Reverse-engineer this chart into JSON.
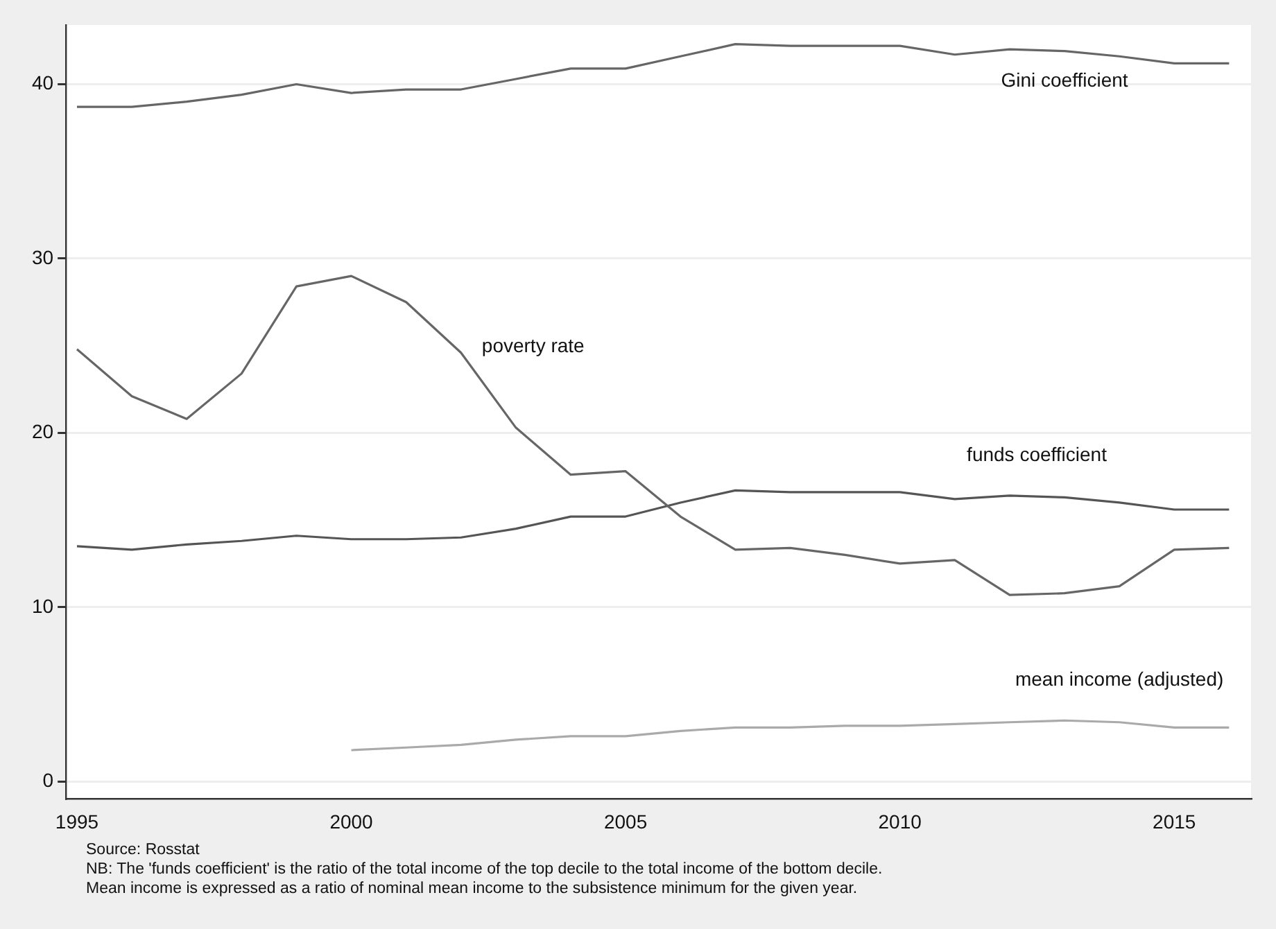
{
  "chart_data": {
    "type": "line",
    "x": [
      1995,
      1996,
      1997,
      1998,
      1999,
      2000,
      2001,
      2002,
      2003,
      2004,
      2005,
      2006,
      2007,
      2008,
      2009,
      2010,
      2011,
      2012,
      2013,
      2014,
      2015,
      2016
    ],
    "xlim": [
      1994.8,
      2016.4
    ],
    "xticks": [
      1995,
      2000,
      2005,
      2010,
      2015
    ],
    "ylim": [
      -1,
      43.4
    ],
    "yticks": [
      0,
      10,
      20,
      30,
      40
    ],
    "grid": "y",
    "legend": false,
    "marker": "none",
    "line_style": "solid",
    "series": [
      {
        "name": "Gini coefficient",
        "color": "#666666",
        "values": [
          38.7,
          38.7,
          39.0,
          39.4,
          40.0,
          39.5,
          39.7,
          39.7,
          40.3,
          40.9,
          40.9,
          41.6,
          42.3,
          42.2,
          42.2,
          42.2,
          41.7,
          42.0,
          41.9,
          41.6,
          41.2,
          41.2
        ]
      },
      {
        "name": "poverty rate",
        "color": "#666666",
        "values": [
          24.8,
          22.1,
          20.8,
          23.4,
          28.4,
          29.0,
          27.5,
          24.6,
          20.3,
          17.6,
          17.8,
          15.2,
          13.3,
          13.4,
          13.0,
          12.5,
          12.7,
          10.7,
          10.8,
          11.2,
          13.3,
          13.4
        ]
      },
      {
        "name": "funds coefficient",
        "color": "#555555",
        "values": [
          13.5,
          13.3,
          13.6,
          13.8,
          14.1,
          13.9,
          13.9,
          14.0,
          14.5,
          15.2,
          15.2,
          16.0,
          16.7,
          16.6,
          16.6,
          16.6,
          16.2,
          16.4,
          16.3,
          16.0,
          15.6,
          15.6
        ]
      },
      {
        "name": "mean income (adjusted)",
        "color": "#aaaaaa",
        "values": [
          null,
          null,
          null,
          null,
          null,
          1.8,
          1.95,
          2.1,
          2.4,
          2.6,
          2.6,
          2.9,
          3.1,
          3.1,
          3.2,
          3.2,
          3.3,
          3.4,
          3.5,
          3.4,
          3.1,
          3.1
        ]
      }
    ],
    "annotations": [
      "Source: Rosstat",
      "NB: The 'funds coefficient' is the ratio of the total income of the top decile to the total income of the bottom decile.",
      "Mean income is expressed as a ratio of nominal mean income to the subsistence minimum for the given year."
    ]
  }
}
